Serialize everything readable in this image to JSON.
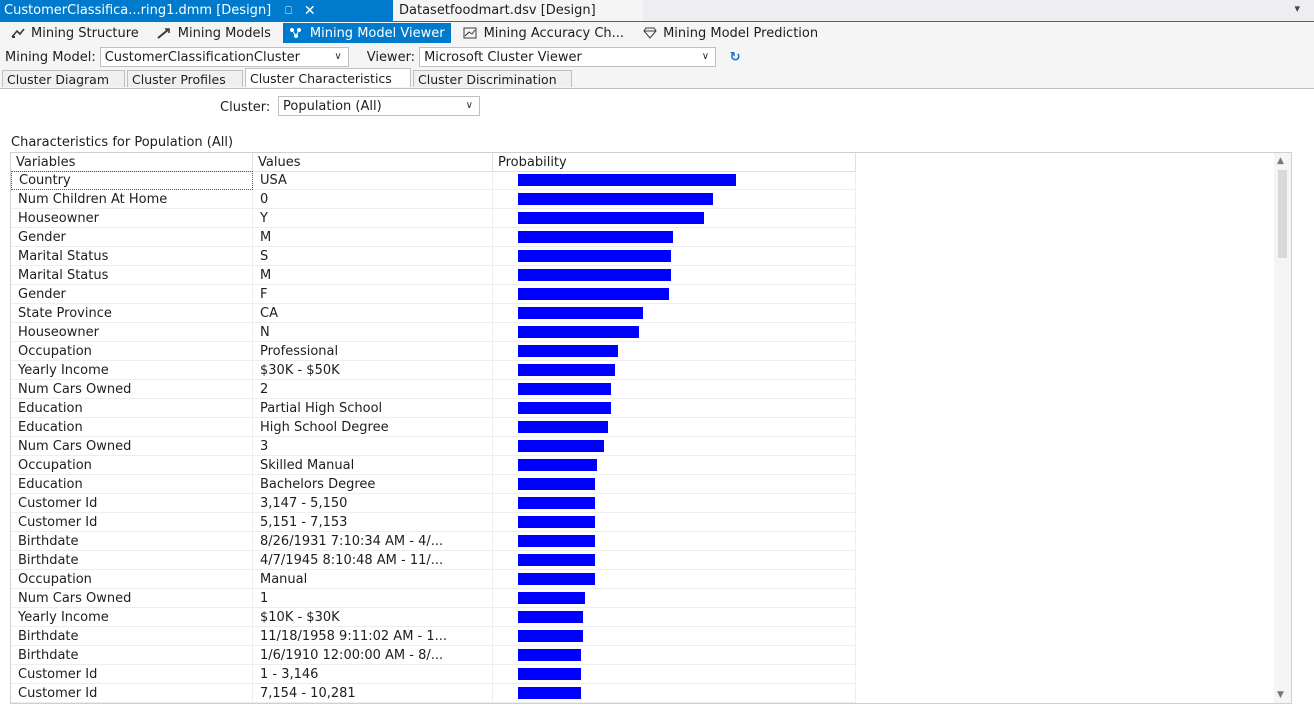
{
  "doc_tabs": {
    "active": "CustomerClassifica...ring1.dmm [Design]",
    "pin_icon": "pin-icon",
    "close_icon": "close-icon",
    "second": "Datasetfoodmart.dsv [Design]"
  },
  "designer_tabs": [
    {
      "label": "Mining Structure",
      "icon": "mining-structure-icon"
    },
    {
      "label": "Mining Models",
      "icon": "mining-models-icon"
    },
    {
      "label": "Mining Model Viewer",
      "icon": "mining-model-viewer-icon"
    },
    {
      "label": "Mining Accuracy Ch...",
      "icon": "mining-accuracy-chart-icon"
    },
    {
      "label": "Mining Model Prediction",
      "icon": "mining-model-prediction-icon"
    }
  ],
  "toolbar": {
    "model_label": "Mining Model:",
    "model_value": "CustomerClassificationCluster",
    "viewer_label": "Viewer:",
    "viewer_value": "Microsoft Cluster Viewer"
  },
  "viewer_tabs": [
    "Cluster Diagram",
    "Cluster Profiles",
    "Cluster Characteristics",
    "Cluster Discrimination"
  ],
  "cluster": {
    "label": "Cluster:",
    "value": "Population (All)"
  },
  "characteristics_title": "Characteristics for Population (All)",
  "grid": {
    "headers": [
      "Variables",
      "Values",
      "Probability"
    ],
    "rows": [
      {
        "variable": "Country",
        "value": "USA",
        "probability": 0.94
      },
      {
        "variable": "Num Children At Home",
        "value": "0",
        "probability": 0.84
      },
      {
        "variable": "Houseowner",
        "value": "Y",
        "probability": 0.8
      },
      {
        "variable": "Gender",
        "value": "M",
        "probability": 0.67
      },
      {
        "variable": "Marital Status",
        "value": "S",
        "probability": 0.66
      },
      {
        "variable": "Marital Status",
        "value": "M",
        "probability": 0.66
      },
      {
        "variable": "Gender",
        "value": "F",
        "probability": 0.65
      },
      {
        "variable": "State Province",
        "value": "CA",
        "probability": 0.54
      },
      {
        "variable": "Houseowner",
        "value": "N",
        "probability": 0.52
      },
      {
        "variable": "Occupation",
        "value": "Professional",
        "probability": 0.43
      },
      {
        "variable": "Yearly Income",
        "value": "$30K - $50K",
        "probability": 0.42
      },
      {
        "variable": "Num Cars Owned",
        "value": "2",
        "probability": 0.4
      },
      {
        "variable": "Education",
        "value": "Partial High School",
        "probability": 0.4
      },
      {
        "variable": "Education",
        "value": "High School Degree",
        "probability": 0.39
      },
      {
        "variable": "Num Cars Owned",
        "value": "3",
        "probability": 0.37
      },
      {
        "variable": "Occupation",
        "value": "Skilled Manual",
        "probability": 0.34
      },
      {
        "variable": "Education",
        "value": "Bachelors Degree",
        "probability": 0.33
      },
      {
        "variable": "Customer Id",
        "value": "3,147 - 5,150",
        "probability": 0.33
      },
      {
        "variable": "Customer Id",
        "value": "5,151 - 7,153",
        "probability": 0.33
      },
      {
        "variable": "Birthdate",
        "value": "8/26/1931 7:10:34 AM - 4/...",
        "probability": 0.33
      },
      {
        "variable": "Birthdate",
        "value": "4/7/1945 8:10:48 AM - 11/...",
        "probability": 0.33
      },
      {
        "variable": "Occupation",
        "value": "Manual",
        "probability": 0.33
      },
      {
        "variable": "Num Cars Owned",
        "value": "1",
        "probability": 0.29
      },
      {
        "variable": "Yearly Income",
        "value": "$10K - $30K",
        "probability": 0.28
      },
      {
        "variable": "Birthdate",
        "value": "11/18/1958 9:11:02 AM - 1...",
        "probability": 0.28
      },
      {
        "variable": "Birthdate",
        "value": "1/6/1910 12:00:00 AM - 8/...",
        "probability": 0.27
      },
      {
        "variable": "Customer Id",
        "value": "1 - 3,146",
        "probability": 0.27
      },
      {
        "variable": "Customer Id",
        "value": "7,154 - 10,281",
        "probability": 0.27
      }
    ]
  },
  "colors": {
    "accent": "#007acc",
    "bar": "#0000ff"
  }
}
